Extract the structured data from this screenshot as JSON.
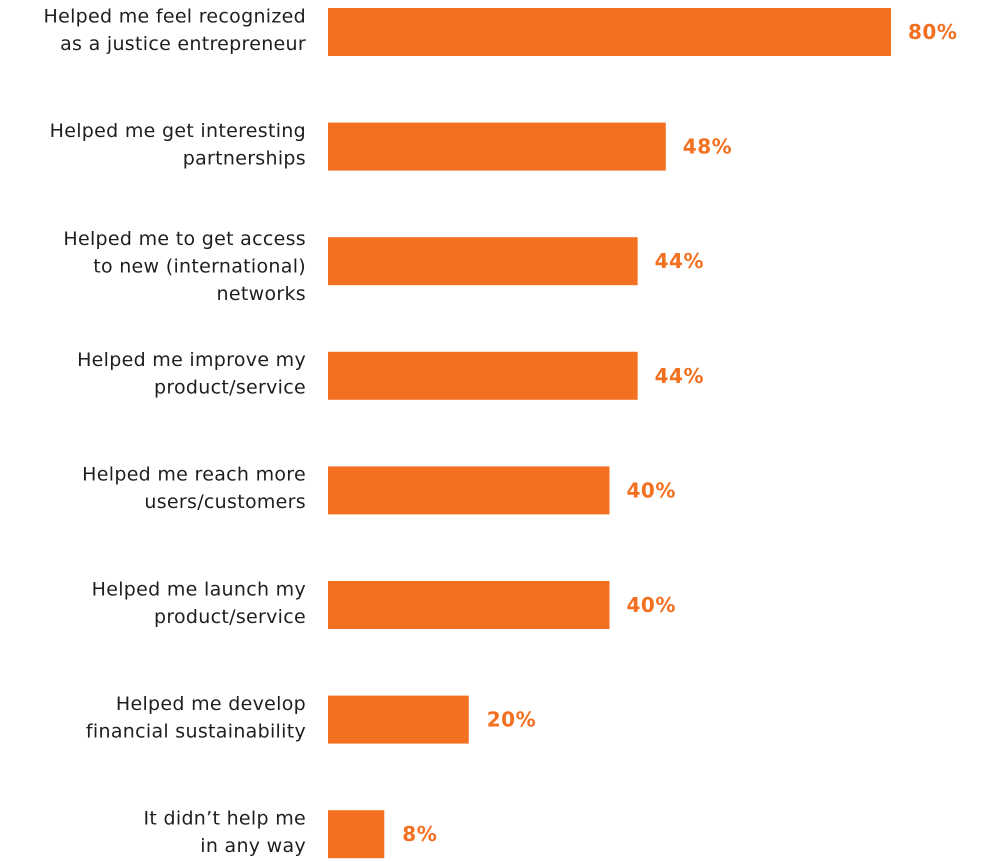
{
  "chart_data": {
    "type": "bar",
    "orientation": "horizontal",
    "categories": [
      [
        "Helped me feel recognized",
        "as a justice entrepreneur"
      ],
      [
        "Helped me get interesting",
        "partnerships"
      ],
      [
        "Helped me to get access",
        "to new (international)",
        "networks"
      ],
      [
        "Helped me improve my",
        "product/service"
      ],
      [
        "Helped me reach more",
        "users/customers"
      ],
      [
        "Helped me launch my",
        "product/service"
      ],
      [
        "Helped me develop",
        "financial sustainability"
      ],
      [
        "It didn’t help me",
        "in any way"
      ]
    ],
    "values": [
      80,
      48,
      44,
      44,
      40,
      40,
      20,
      8
    ],
    "value_labels": [
      "80%",
      "48%",
      "44%",
      "44%",
      "40%",
      "40%",
      "20%",
      "8%"
    ],
    "xlim": [
      0,
      80
    ],
    "grid": false,
    "colors": {
      "bar": "#f37021",
      "value_label": "#f37021",
      "category_label": "#1e1e1e"
    }
  }
}
